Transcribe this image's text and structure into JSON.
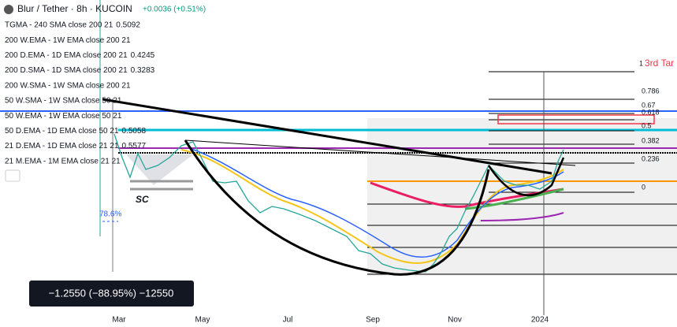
{
  "header": {
    "symbol": "Blur / Tether · 8h · KUCOIN",
    "change": "+0.0036 (+0.51%)"
  },
  "indicators": [
    {
      "label": "TGMA - 240 SMA close 200 21",
      "value": "0.5092"
    },
    {
      "label": "200 W.EMA - 1W EMA close 200 21"
    },
    {
      "label": "200 D.EMA - 1D EMA close 200 21",
      "value": "0.4245"
    },
    {
      "label": "200 D.SMA - 1D SMA close 200 21",
      "value": "0.3283"
    },
    {
      "label": "200 W.SMA - 1W SMA close 200 21"
    },
    {
      "label": "50 W.SMA - 1W SMA close 50 21"
    },
    {
      "label": "50 W.EMA - 1W EMA close 50 21"
    },
    {
      "label": "50 D.EMA - 1D EMA close 50 21",
      "value": "0.5058"
    },
    {
      "label": "21 D.EMA - 1D EMA close 21 21",
      "value": "0.5577"
    },
    {
      "label": "21 M.EMA - 1M EMA close 21 21"
    }
  ],
  "fib_levels": [
    "1",
    "0.786",
    "0.67",
    "0.618",
    "0.5",
    "0.382",
    "0.236",
    "0"
  ],
  "annotations": {
    "target": "3rd Tar",
    "sc": "SC",
    "retrace": "78.6%"
  },
  "measure": "−1.2550 (−88.95%) −12550",
  "x_axis": [
    "Mar",
    "May",
    "Jul",
    "Sep",
    "Nov",
    "2024"
  ]
}
